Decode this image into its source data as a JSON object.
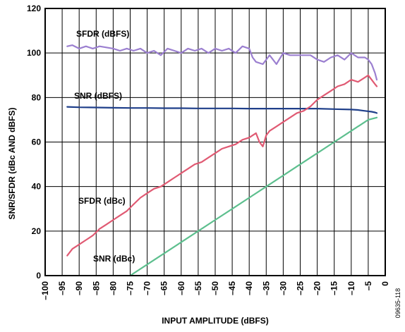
{
  "chart_data": {
    "type": "line",
    "title": "",
    "xlabel": "INPUT AMPLITUDE (dBFS)",
    "ylabel": "SNR/SFDR (dBc AND dBFS)",
    "xlim": [
      -100,
      0
    ],
    "ylim": [
      0,
      120
    ],
    "x_ticks": [
      "–100",
      "–95",
      "–90",
      "–85",
      "–80",
      "–75",
      "–70",
      "–65",
      "–60",
      "–55",
      "–50",
      "–45",
      "–40",
      "–35",
      "–30",
      "–25",
      "–20",
      "–15",
      "–10",
      "–5",
      "0"
    ],
    "y_ticks": [
      "0",
      "20",
      "40",
      "60",
      "80",
      "100",
      "120"
    ],
    "grid": true,
    "legend": "none",
    "figure_id": "09635-118",
    "series": [
      {
        "name": "SFDR (dBFS)",
        "color": "#9b7fd0",
        "x": [
          -93.5,
          -92,
          -90,
          -88,
          -86,
          -84,
          -82,
          -80,
          -78,
          -76,
          -74,
          -72,
          -70,
          -68,
          -66,
          -64,
          -62,
          -60,
          -58,
          -56,
          -54,
          -52,
          -50,
          -48,
          -46,
          -44,
          -42,
          -40,
          -39,
          -38,
          -36,
          -34,
          -32,
          -30,
          -28,
          -26,
          -24,
          -22,
          -20,
          -18,
          -16,
          -14,
          -12,
          -10,
          -8,
          -6,
          -5,
          -4,
          -3,
          -2.5
        ],
        "y": [
          103,
          103.5,
          102,
          103,
          102,
          103,
          102.5,
          102,
          101,
          102,
          101,
          102,
          100,
          101,
          99,
          102,
          101,
          100,
          102,
          101,
          102,
          100,
          102,
          101,
          102,
          100,
          103,
          102,
          98,
          96,
          95,
          99,
          95,
          100,
          99,
          99,
          99,
          99,
          97,
          96,
          98,
          99,
          97,
          100,
          98,
          98,
          97,
          95,
          91,
          88
        ]
      },
      {
        "name": "SNR (dBFS)",
        "color": "#1f3f8a",
        "x": [
          -93.5,
          -90,
          -85,
          -80,
          -75,
          -70,
          -65,
          -60,
          -55,
          -50,
          -45,
          -40,
          -35,
          -30,
          -25,
          -20,
          -15,
          -10,
          -8,
          -6,
          -4,
          -3,
          -2.5
        ],
        "y": [
          75.8,
          75.6,
          75.5,
          75.4,
          75.3,
          75.3,
          75.2,
          75.2,
          75.1,
          75.1,
          75.1,
          75.0,
          75.0,
          75.0,
          75.0,
          75.0,
          74.8,
          74.6,
          74.4,
          74.0,
          73.6,
          73.3,
          73.0
        ]
      },
      {
        "name": "SFDR (dBc)",
        "color": "#e05a73",
        "x": [
          -93.5,
          -92,
          -90,
          -88,
          -86,
          -84,
          -82,
          -80,
          -78,
          -76,
          -74,
          -72,
          -70,
          -68,
          -66,
          -64,
          -62,
          -60,
          -58,
          -56,
          -54,
          -52,
          -50,
          -48,
          -46,
          -44,
          -42,
          -40,
          -38,
          -37,
          -36,
          -35,
          -34,
          -32,
          -30,
          -28,
          -26,
          -24,
          -22,
          -20,
          -18,
          -16,
          -14,
          -12,
          -10,
          -8,
          -6,
          -5,
          -4,
          -3,
          -2.5
        ],
        "y": [
          9,
          12,
          14,
          16,
          18,
          21,
          23,
          25,
          27,
          29,
          32,
          35,
          37,
          39,
          40,
          42,
          44,
          46,
          48,
          50,
          51,
          53,
          55,
          57,
          58,
          59,
          61,
          62,
          64,
          60,
          58,
          63,
          65,
          67,
          69,
          71,
          73,
          74,
          76,
          79,
          81,
          83,
          85,
          86,
          88,
          87,
          89,
          90,
          88,
          86,
          85
        ]
      },
      {
        "name": "SNR (dBc)",
        "color": "#5dbf8e",
        "x": [
          -75,
          -70,
          -65,
          -60,
          -55,
          -50,
          -45,
          -40,
          -35,
          -30,
          -25,
          -20,
          -15,
          -10,
          -5,
          -2.5
        ],
        "y": [
          0,
          5,
          10,
          15,
          20,
          25,
          30,
          35,
          40,
          45,
          50,
          55,
          60,
          65,
          70,
          71
        ]
      }
    ]
  }
}
